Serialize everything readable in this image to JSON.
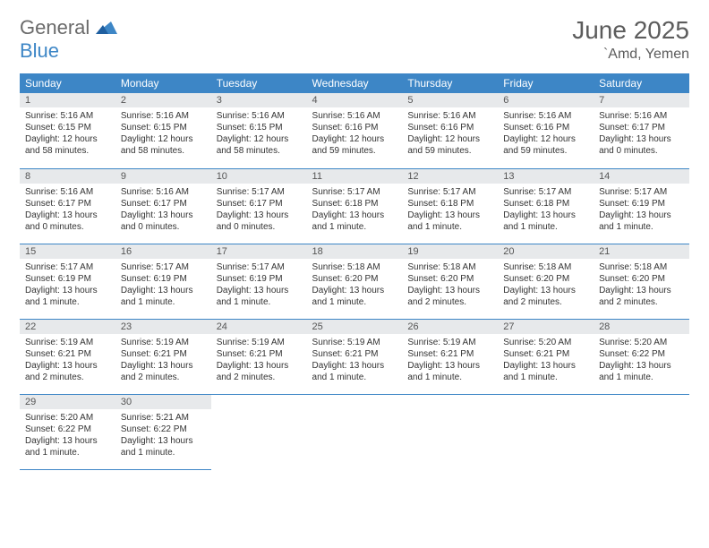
{
  "logo": {
    "general": "General",
    "blue": "Blue"
  },
  "title": "June 2025",
  "location": "`Amd, Yemen",
  "colors": {
    "header_bg": "#3d86c6",
    "header_fg": "#ffffff",
    "daynum_bg": "#e7e9eb",
    "row_border": "#3d86c6",
    "logo_blue": "#3d86c6",
    "logo_gray": "#6a6a6a"
  },
  "weekdays": [
    "Sunday",
    "Monday",
    "Tuesday",
    "Wednesday",
    "Thursday",
    "Friday",
    "Saturday"
  ],
  "weeks": [
    [
      {
        "n": "1",
        "sunrise": "Sunrise: 5:16 AM",
        "sunset": "Sunset: 6:15 PM",
        "daylight": "Daylight: 12 hours and 58 minutes."
      },
      {
        "n": "2",
        "sunrise": "Sunrise: 5:16 AM",
        "sunset": "Sunset: 6:15 PM",
        "daylight": "Daylight: 12 hours and 58 minutes."
      },
      {
        "n": "3",
        "sunrise": "Sunrise: 5:16 AM",
        "sunset": "Sunset: 6:15 PM",
        "daylight": "Daylight: 12 hours and 58 minutes."
      },
      {
        "n": "4",
        "sunrise": "Sunrise: 5:16 AM",
        "sunset": "Sunset: 6:16 PM",
        "daylight": "Daylight: 12 hours and 59 minutes."
      },
      {
        "n": "5",
        "sunrise": "Sunrise: 5:16 AM",
        "sunset": "Sunset: 6:16 PM",
        "daylight": "Daylight: 12 hours and 59 minutes."
      },
      {
        "n": "6",
        "sunrise": "Sunrise: 5:16 AM",
        "sunset": "Sunset: 6:16 PM",
        "daylight": "Daylight: 12 hours and 59 minutes."
      },
      {
        "n": "7",
        "sunrise": "Sunrise: 5:16 AM",
        "sunset": "Sunset: 6:17 PM",
        "daylight": "Daylight: 13 hours and 0 minutes."
      }
    ],
    [
      {
        "n": "8",
        "sunrise": "Sunrise: 5:16 AM",
        "sunset": "Sunset: 6:17 PM",
        "daylight": "Daylight: 13 hours and 0 minutes."
      },
      {
        "n": "9",
        "sunrise": "Sunrise: 5:16 AM",
        "sunset": "Sunset: 6:17 PM",
        "daylight": "Daylight: 13 hours and 0 minutes."
      },
      {
        "n": "10",
        "sunrise": "Sunrise: 5:17 AM",
        "sunset": "Sunset: 6:17 PM",
        "daylight": "Daylight: 13 hours and 0 minutes."
      },
      {
        "n": "11",
        "sunrise": "Sunrise: 5:17 AM",
        "sunset": "Sunset: 6:18 PM",
        "daylight": "Daylight: 13 hours and 1 minute."
      },
      {
        "n": "12",
        "sunrise": "Sunrise: 5:17 AM",
        "sunset": "Sunset: 6:18 PM",
        "daylight": "Daylight: 13 hours and 1 minute."
      },
      {
        "n": "13",
        "sunrise": "Sunrise: 5:17 AM",
        "sunset": "Sunset: 6:18 PM",
        "daylight": "Daylight: 13 hours and 1 minute."
      },
      {
        "n": "14",
        "sunrise": "Sunrise: 5:17 AM",
        "sunset": "Sunset: 6:19 PM",
        "daylight": "Daylight: 13 hours and 1 minute."
      }
    ],
    [
      {
        "n": "15",
        "sunrise": "Sunrise: 5:17 AM",
        "sunset": "Sunset: 6:19 PM",
        "daylight": "Daylight: 13 hours and 1 minute."
      },
      {
        "n": "16",
        "sunrise": "Sunrise: 5:17 AM",
        "sunset": "Sunset: 6:19 PM",
        "daylight": "Daylight: 13 hours and 1 minute."
      },
      {
        "n": "17",
        "sunrise": "Sunrise: 5:17 AM",
        "sunset": "Sunset: 6:19 PM",
        "daylight": "Daylight: 13 hours and 1 minute."
      },
      {
        "n": "18",
        "sunrise": "Sunrise: 5:18 AM",
        "sunset": "Sunset: 6:20 PM",
        "daylight": "Daylight: 13 hours and 1 minute."
      },
      {
        "n": "19",
        "sunrise": "Sunrise: 5:18 AM",
        "sunset": "Sunset: 6:20 PM",
        "daylight": "Daylight: 13 hours and 2 minutes."
      },
      {
        "n": "20",
        "sunrise": "Sunrise: 5:18 AM",
        "sunset": "Sunset: 6:20 PM",
        "daylight": "Daylight: 13 hours and 2 minutes."
      },
      {
        "n": "21",
        "sunrise": "Sunrise: 5:18 AM",
        "sunset": "Sunset: 6:20 PM",
        "daylight": "Daylight: 13 hours and 2 minutes."
      }
    ],
    [
      {
        "n": "22",
        "sunrise": "Sunrise: 5:19 AM",
        "sunset": "Sunset: 6:21 PM",
        "daylight": "Daylight: 13 hours and 2 minutes."
      },
      {
        "n": "23",
        "sunrise": "Sunrise: 5:19 AM",
        "sunset": "Sunset: 6:21 PM",
        "daylight": "Daylight: 13 hours and 2 minutes."
      },
      {
        "n": "24",
        "sunrise": "Sunrise: 5:19 AM",
        "sunset": "Sunset: 6:21 PM",
        "daylight": "Daylight: 13 hours and 2 minutes."
      },
      {
        "n": "25",
        "sunrise": "Sunrise: 5:19 AM",
        "sunset": "Sunset: 6:21 PM",
        "daylight": "Daylight: 13 hours and 1 minute."
      },
      {
        "n": "26",
        "sunrise": "Sunrise: 5:19 AM",
        "sunset": "Sunset: 6:21 PM",
        "daylight": "Daylight: 13 hours and 1 minute."
      },
      {
        "n": "27",
        "sunrise": "Sunrise: 5:20 AM",
        "sunset": "Sunset: 6:21 PM",
        "daylight": "Daylight: 13 hours and 1 minute."
      },
      {
        "n": "28",
        "sunrise": "Sunrise: 5:20 AM",
        "sunset": "Sunset: 6:22 PM",
        "daylight": "Daylight: 13 hours and 1 minute."
      }
    ],
    [
      {
        "n": "29",
        "sunrise": "Sunrise: 5:20 AM",
        "sunset": "Sunset: 6:22 PM",
        "daylight": "Daylight: 13 hours and 1 minute."
      },
      {
        "n": "30",
        "sunrise": "Sunrise: 5:21 AM",
        "sunset": "Sunset: 6:22 PM",
        "daylight": "Daylight: 13 hours and 1 minute."
      },
      null,
      null,
      null,
      null,
      null
    ]
  ]
}
